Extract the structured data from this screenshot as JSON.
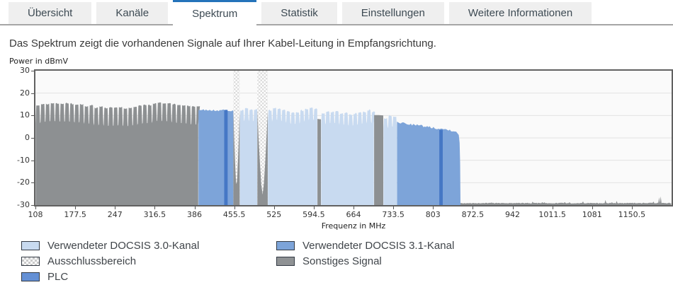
{
  "tabs": {
    "items": [
      {
        "label": "Übersicht",
        "active": false
      },
      {
        "label": "Kanäle",
        "active": false
      },
      {
        "label": "Spektrum",
        "active": true
      },
      {
        "label": "Statistik",
        "active": false
      },
      {
        "label": "Einstellungen",
        "active": false
      },
      {
        "label": "Weitere Informationen",
        "active": false
      }
    ]
  },
  "description": "Das Spektrum zeigt die vorhandenen Signale auf Ihrer Kabel-Leitung in Empfangsrichtung.",
  "chart_data": {
    "type": "area",
    "title": "",
    "ylabel": "Power in dBmV",
    "xlabel": "Frequenz in MHz",
    "ylim": [
      -30,
      30
    ],
    "yticks": [
      30,
      20,
      10,
      0,
      -10,
      -20,
      -30
    ],
    "xlim": [
      108,
      1220
    ],
    "xticks": [
      108,
      177.5,
      247,
      316.5,
      386,
      455.5,
      525,
      594.5,
      664,
      733.5,
      803,
      872.5,
      942,
      1011.5,
      1081,
      1150.5
    ],
    "grid": "horizontal-only",
    "legend_position": "below",
    "colors": {
      "background": "#fafafa",
      "grid": "#e3e3e3",
      "border": "#616161",
      "docsis30": "#c8daf0",
      "docsis31": "#7da4d9",
      "plc": "#4577c5",
      "sonstiges": "#8d9092",
      "noise": "#8d9092",
      "ausschluss_checker": "#dcdcdc"
    },
    "segments": [
      {
        "band": "sonstiges",
        "style": "comb",
        "f0": 108,
        "f1": 393,
        "level": 14.3,
        "notch_depth": 8,
        "channel_mhz": 8.5,
        "wave": 1.0
      },
      {
        "band": "docsis31",
        "style": "ofdm",
        "f0": 393,
        "f1": 454,
        "level0": 12.6,
        "level1": 12.2
      },
      {
        "band": "ausschluss",
        "style": "vnotch",
        "f0": 454,
        "f1": 465,
        "level": 12.4,
        "dip": -21
      },
      {
        "band": "docsis30",
        "style": "comb",
        "f0": 465,
        "f1": 496,
        "level": 12.8,
        "notch_depth": 5,
        "channel_mhz": 8
      },
      {
        "band": "ausschluss",
        "style": "vnotch",
        "f0": 496,
        "f1": 514,
        "level": 12.5,
        "dip": -25
      },
      {
        "band": "docsis30",
        "style": "comb",
        "f0": 514,
        "f1": 601,
        "level": 12.3,
        "notch_depth": 5,
        "channel_mhz": 8,
        "wave": 0.8
      },
      {
        "band": "sonstiges",
        "style": "block",
        "f0": 601,
        "f1": 607,
        "level": 8.5
      },
      {
        "band": "docsis30",
        "style": "comb",
        "f0": 607,
        "f1": 700,
        "level": 11.3,
        "notch_depth": 5,
        "channel_mhz": 8,
        "wave": 0.7
      },
      {
        "band": "sonstiges",
        "style": "block",
        "f0": 700,
        "f1": 716,
        "level": 10.2
      },
      {
        "band": "docsis30",
        "style": "comb",
        "f0": 716,
        "f1": 740,
        "level": 9.3,
        "notch_depth": 4.5,
        "channel_mhz": 8
      },
      {
        "band": "docsis31",
        "style": "ofdm",
        "f0": 740,
        "f1": 851,
        "level0": 7.0,
        "level1": 2.8,
        "rolloff": 6
      },
      {
        "band": "noise",
        "style": "noise",
        "f0": 851,
        "f1": 1220,
        "level": -29.3
      }
    ],
    "plc_bands": [
      {
        "f0": 438,
        "f1": 444,
        "level": 12.5
      },
      {
        "f0": 814,
        "f1": 820,
        "level": 3.6
      }
    ]
  },
  "legend": {
    "items": [
      {
        "label": "Verwendeter DOCSIS 3.0-Kanal",
        "swatch": "#c8daf0",
        "pattern": "solid"
      },
      {
        "label": "Verwendeter DOCSIS 3.1-Kanal",
        "swatch": "#7da4d9",
        "pattern": "solid"
      },
      {
        "label": "Ausschlussbereich",
        "swatch": "#ffffff",
        "pattern": "checker"
      },
      {
        "label": "Sonstiges Signal",
        "swatch": "#8f9294",
        "pattern": "solid"
      },
      {
        "label": "PLC",
        "swatch": "#6490d5",
        "pattern": "solid"
      }
    ]
  }
}
